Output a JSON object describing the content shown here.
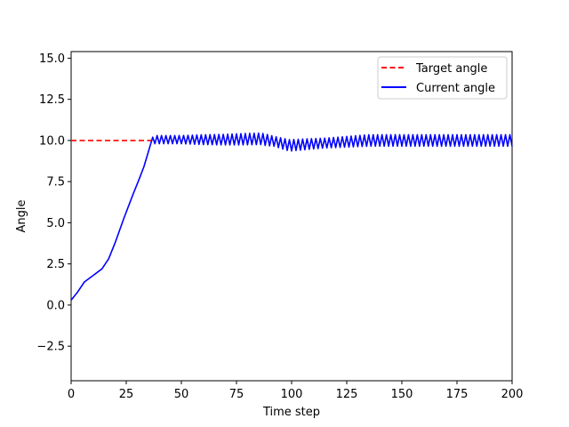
{
  "chart_data": {
    "type": "line",
    "title": "",
    "xlabel": "Time step",
    "ylabel": "Angle",
    "xlim": [
      0,
      200
    ],
    "ylim": [
      -4.6,
      15.4
    ],
    "xticks": [
      0,
      25,
      50,
      75,
      100,
      125,
      150,
      175,
      200
    ],
    "yticks": [
      -2.5,
      0.0,
      2.5,
      5.0,
      7.5,
      10.0,
      12.5,
      15.0
    ],
    "ytick_labels": [
      "−2.5",
      "0.0",
      "2.5",
      "5.0",
      "7.5",
      "10.0",
      "12.5",
      "15.0"
    ],
    "grid": false,
    "legend_position": "upper-right",
    "series": [
      {
        "name": "Target angle",
        "style": "dashed",
        "color": "#ff0000",
        "x": [
          0,
          37
        ],
        "values": [
          10,
          10
        ]
      },
      {
        "name": "Current angle",
        "style": "solid",
        "color": "#0000ff",
        "x": [
          0,
          3,
          6,
          10,
          14,
          17,
          20,
          24,
          28,
          31,
          33,
          35,
          37
        ],
        "values": [
          0.3,
          0.8,
          1.4,
          1.8,
          2.2,
          2.8,
          3.8,
          5.3,
          6.7,
          7.7,
          8.4,
          9.3,
          10.2
        ],
        "oscillation": {
          "x_start": 37,
          "x_end": 200,
          "period": 2,
          "center_points": [
            [
              37,
              10.05
            ],
            [
              70,
              10.05
            ],
            [
              86,
              10.1
            ],
            [
              92,
              9.95
            ],
            [
              99,
              9.7
            ],
            [
              110,
              9.8
            ],
            [
              135,
              10.0
            ],
            [
              200,
              10.0
            ]
          ],
          "amplitude_points": [
            [
              37,
              0.25
            ],
            [
              50,
              0.25
            ],
            [
              60,
              0.3
            ],
            [
              80,
              0.35
            ],
            [
              88,
              0.35
            ],
            [
              92,
              0.3
            ],
            [
              99,
              0.35
            ],
            [
              115,
              0.3
            ],
            [
              135,
              0.35
            ],
            [
              200,
              0.35
            ]
          ]
        }
      }
    ]
  }
}
